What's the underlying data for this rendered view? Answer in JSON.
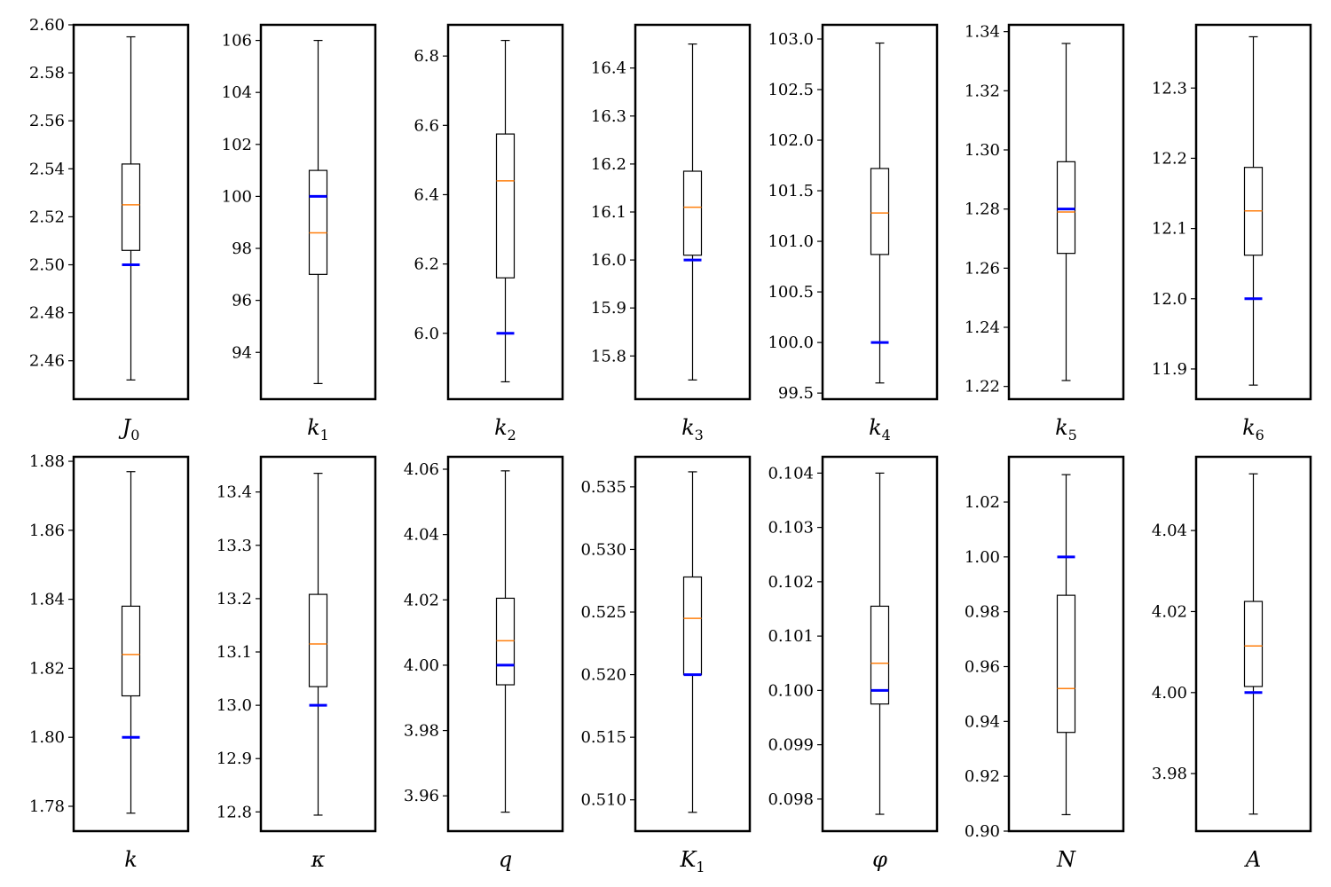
{
  "colors": {
    "median": "#ff7f0e",
    "reference": "#0000ff",
    "frame": "#000000"
  },
  "chart_data": [
    {
      "type": "box",
      "xlabel": "J",
      "xlabel_sub": "0",
      "ylim": [
        2.444,
        2.6
      ],
      "ticks": [
        2.46,
        2.48,
        2.5,
        2.52,
        2.54,
        2.56,
        2.58,
        2.6
      ],
      "tick_labels": [
        "2.46",
        "2.48",
        "2.50",
        "2.52",
        "2.54",
        "2.56",
        "2.58",
        "2.60"
      ],
      "box": {
        "whisker_low": 2.452,
        "q1": 2.506,
        "median": 2.525,
        "q3": 2.542,
        "whisker_high": 2.595
      },
      "reference": 2.5
    },
    {
      "type": "box",
      "xlabel": "k",
      "xlabel_sub": "1",
      "ylim": [
        92.2,
        106.6
      ],
      "ticks": [
        94,
        96,
        98,
        100,
        102,
        104,
        106
      ],
      "tick_labels": [
        "94",
        "96",
        "98",
        "100",
        "102",
        "104",
        "106"
      ],
      "box": {
        "whisker_low": 92.8,
        "q1": 97.0,
        "median": 98.6,
        "q3": 101.0,
        "whisker_high": 106.0
      },
      "reference": 100.0
    },
    {
      "type": "box",
      "xlabel": "k",
      "xlabel_sub": "2",
      "ylim": [
        5.81,
        6.89
      ],
      "ticks": [
        6.0,
        6.2,
        6.4,
        6.6,
        6.8
      ],
      "tick_labels": [
        "6.0",
        "6.2",
        "6.4",
        "6.6",
        "6.8"
      ],
      "box": {
        "whisker_low": 5.86,
        "q1": 6.16,
        "median": 6.44,
        "q3": 6.575,
        "whisker_high": 6.845
      },
      "reference": 6.0
    },
    {
      "type": "box",
      "xlabel": "k",
      "xlabel_sub": "3",
      "ylim": [
        15.71,
        16.49
      ],
      "ticks": [
        15.8,
        15.9,
        16.0,
        16.1,
        16.2,
        16.3,
        16.4
      ],
      "tick_labels": [
        "15.8",
        "15.9",
        "16.0",
        "16.1",
        "16.2",
        "16.3",
        "16.4"
      ],
      "box": {
        "whisker_low": 15.75,
        "q1": 16.01,
        "median": 16.11,
        "q3": 16.185,
        "whisker_high": 16.45
      },
      "reference": 16.0
    },
    {
      "type": "box",
      "xlabel": "k",
      "xlabel_sub": "4",
      "ylim": [
        99.44,
        103.14
      ],
      "ticks": [
        99.5,
        100.0,
        100.5,
        101.0,
        101.5,
        102.0,
        102.5,
        103.0
      ],
      "tick_labels": [
        "99.5",
        "100.0",
        "100.5",
        "101.0",
        "101.5",
        "102.0",
        "102.5",
        "103.0"
      ],
      "box": {
        "whisker_low": 99.6,
        "q1": 100.87,
        "median": 101.28,
        "q3": 101.72,
        "whisker_high": 102.96
      },
      "reference": 100.0
    },
    {
      "type": "box",
      "xlabel": "k",
      "xlabel_sub": "5",
      "ylim": [
        1.2157,
        1.3423
      ],
      "ticks": [
        1.22,
        1.24,
        1.26,
        1.28,
        1.3,
        1.32,
        1.34
      ],
      "tick_labels": [
        "1.22",
        "1.24",
        "1.26",
        "1.28",
        "1.30",
        "1.32",
        "1.34"
      ],
      "box": {
        "whisker_low": 1.222,
        "q1": 1.265,
        "median": 1.279,
        "q3": 1.296,
        "whisker_high": 1.336
      },
      "reference": 1.28
    },
    {
      "type": "box",
      "xlabel": "k",
      "xlabel_sub": "6",
      "ylim": [
        11.857,
        12.39
      ],
      "ticks": [
        11.9,
        12.0,
        12.1,
        12.2,
        12.3
      ],
      "tick_labels": [
        "11.9",
        "12.0",
        "12.1",
        "12.2",
        "12.3"
      ],
      "box": {
        "whisker_low": 11.877,
        "q1": 12.062,
        "median": 12.125,
        "q3": 12.187,
        "whisker_high": 12.373
      },
      "reference": 12.0
    },
    {
      "type": "box",
      "xlabel": "k",
      "xlabel_sub": "",
      "ylim": [
        1.7728,
        1.8813
      ],
      "ticks": [
        1.78,
        1.8,
        1.82,
        1.84,
        1.86,
        1.88
      ],
      "tick_labels": [
        "1.78",
        "1.80",
        "1.82",
        "1.84",
        "1.86",
        "1.88"
      ],
      "box": {
        "whisker_low": 1.778,
        "q1": 1.812,
        "median": 1.824,
        "q3": 1.838,
        "whisker_high": 1.877
      },
      "reference": 1.8
    },
    {
      "type": "box",
      "xlabel": "κ",
      "xlabel_sub": "",
      "ylim": [
        12.764,
        13.466
      ],
      "ticks": [
        12.8,
        12.9,
        13.0,
        13.1,
        13.2,
        13.3,
        13.4
      ],
      "tick_labels": [
        "12.8",
        "12.9",
        "13.0",
        "13.1",
        "13.2",
        "13.3",
        "13.4"
      ],
      "box": {
        "whisker_low": 12.794,
        "q1": 13.035,
        "median": 13.115,
        "q3": 13.208,
        "whisker_high": 13.435
      },
      "reference": 13.0
    },
    {
      "type": "box",
      "xlabel": "q",
      "xlabel_sub": "",
      "ylim": [
        3.9492,
        4.0638
      ],
      "ticks": [
        3.96,
        3.98,
        4.0,
        4.02,
        4.04,
        4.06
      ],
      "tick_labels": [
        "3.96",
        "3.98",
        "4.00",
        "4.02",
        "4.04",
        "4.06"
      ],
      "box": {
        "whisker_low": 3.955,
        "q1": 3.994,
        "median": 4.0075,
        "q3": 4.0205,
        "whisker_high": 4.0595
      },
      "reference": 4.0
    },
    {
      "type": "box",
      "xlabel": "K",
      "xlabel_sub": "1",
      "ylim": [
        0.5075,
        0.5374
      ],
      "ticks": [
        0.51,
        0.515,
        0.52,
        0.525,
        0.53,
        0.535
      ],
      "tick_labels": [
        "0.510",
        "0.515",
        "0.520",
        "0.525",
        "0.530",
        "0.535"
      ],
      "box": {
        "whisker_low": 0.509,
        "q1": 0.52,
        "median": 0.5245,
        "q3": 0.5278,
        "whisker_high": 0.5362
      },
      "reference": 0.52
    },
    {
      "type": "box",
      "xlabel": "φ",
      "xlabel_sub": "",
      "ylim": [
        0.09741,
        0.1043
      ],
      "ticks": [
        0.098,
        0.099,
        0.1,
        0.101,
        0.102,
        0.103,
        0.104
      ],
      "tick_labels": [
        "0.098",
        "0.099",
        "0.100",
        "0.101",
        "0.102",
        "0.103",
        "0.104"
      ],
      "box": {
        "whisker_low": 0.09772,
        "q1": 0.09975,
        "median": 0.1005,
        "q3": 0.10155,
        "whisker_high": 0.104
      },
      "reference": 0.1
    },
    {
      "type": "box",
      "xlabel": "N",
      "xlabel_sub": "",
      "ylim": [
        0.9,
        1.0365
      ],
      "ticks": [
        0.9,
        0.92,
        0.94,
        0.96,
        0.98,
        1.0,
        1.02
      ],
      "tick_labels": [
        "0.90",
        "0.92",
        "0.94",
        "0.96",
        "0.98",
        "1.00",
        "1.02"
      ],
      "box": {
        "whisker_low": 0.906,
        "q1": 0.936,
        "median": 0.952,
        "q3": 0.986,
        "whisker_high": 1.03
      },
      "reference": 1.0
    },
    {
      "type": "box",
      "xlabel": "A",
      "xlabel_sub": "",
      "ylim": [
        3.9658,
        4.0582
      ],
      "ticks": [
        3.98,
        4.0,
        4.02,
        4.04
      ],
      "tick_labels": [
        "3.98",
        "4.00",
        "4.02",
        "4.04"
      ],
      "box": {
        "whisker_low": 3.97,
        "q1": 4.0015,
        "median": 4.0115,
        "q3": 4.0225,
        "whisker_high": 4.054
      },
      "reference": 4.0
    }
  ]
}
